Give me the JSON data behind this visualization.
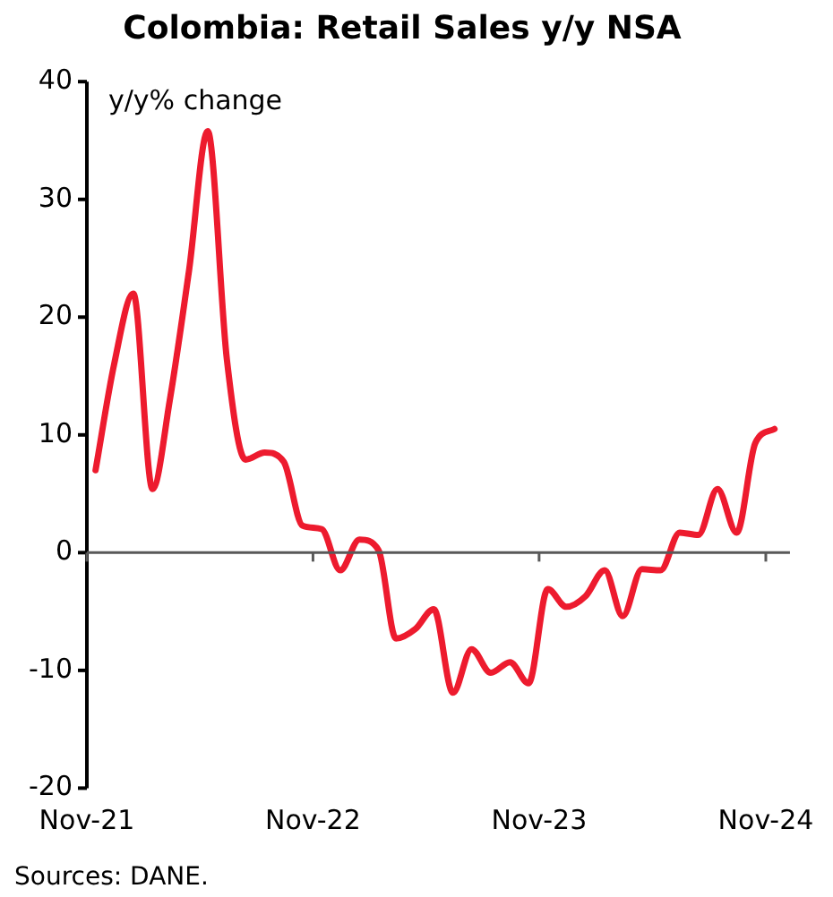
{
  "chart_data": {
    "type": "line",
    "title": "Colombia: Retail Sales y/y NSA",
    "ylabel": "y/y% change",
    "x": [
      "2021-11-15",
      "2021-12-15",
      "2022-01-15",
      "2022-02-15",
      "2022-03-15",
      "2022-04-15",
      "2022-05-15",
      "2022-06-15",
      "2022-07-15",
      "2022-08-15",
      "2022-09-15",
      "2022-10-15",
      "2022-11-15",
      "2022-12-15",
      "2023-01-15",
      "2023-02-15",
      "2023-03-15",
      "2023-04-15",
      "2023-05-15",
      "2023-06-15",
      "2023-07-15",
      "2023-08-15",
      "2023-09-15",
      "2023-10-15",
      "2023-11-15",
      "2023-12-15",
      "2024-01-15",
      "2024-02-15",
      "2024-03-15",
      "2024-04-15",
      "2024-05-15",
      "2024-06-15",
      "2024-07-15",
      "2024-08-15",
      "2024-09-15",
      "2024-10-15",
      "2024-11-15"
    ],
    "series": [
      {
        "color": "#ed1b2e",
        "values": [
          7.0,
          16,
          22,
          5.4,
          13,
          24,
          35.8,
          16.4,
          7.9,
          8.5,
          7.7,
          2.3,
          2.0,
          -1.5,
          1.1,
          0.2,
          -7.3,
          -6.5,
          -4.8,
          -11.9,
          -8.2,
          -10.2,
          -9.3,
          -11.1,
          -3.1,
          -4.6,
          -3.7,
          -1.5,
          -5.4,
          -1.4,
          -1.5,
          1.7,
          1.5,
          5.4,
          1.7,
          9.3,
          10.5
        ]
      }
    ],
    "xlim": [
      "2021-11-01",
      "2024-12-10"
    ],
    "xticks": [
      {
        "value": "2021-11-01",
        "label": "Nov-21"
      },
      {
        "value": "2022-11-01",
        "label": "Nov-22"
      },
      {
        "value": "2023-11-01",
        "label": "Nov-23"
      },
      {
        "value": "2024-11-01",
        "label": "Nov-24"
      }
    ],
    "ylim": [
      -20,
      40
    ],
    "yticks": [
      -20,
      -10,
      0,
      10,
      20,
      30,
      40
    ],
    "ref_lines": [
      {
        "axis": "y",
        "value": 0,
        "color": "#595959"
      }
    ],
    "grid": false,
    "legend": false,
    "marker": "none",
    "line_style": "solid",
    "annotations": [
      "Sources: DANE."
    ]
  }
}
